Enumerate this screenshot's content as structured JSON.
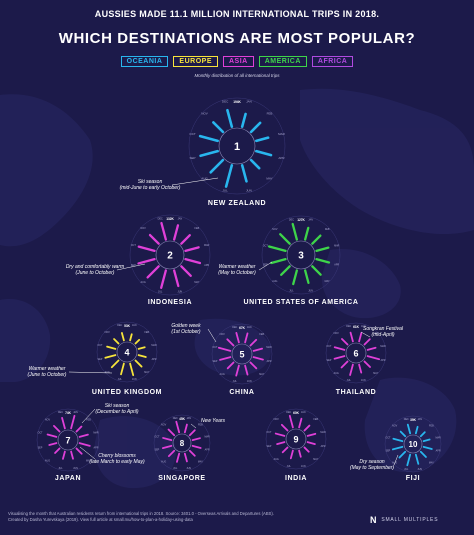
{
  "header": {
    "title_line1": "AUSSIES MADE 11.1 MILLION INTERNATIONAL TRIPS IN 2018.",
    "title_line2": "WHICH DESTINATIONS ARE MOST POPULAR?",
    "subtitle": "Monthly distribution of all international trips"
  },
  "legend": [
    {
      "label": "OCEANIA",
      "color": "#29b6ee"
    },
    {
      "label": "EUROPE",
      "color": "#f7e43b"
    },
    {
      "label": "ASIA",
      "color": "#e040d8"
    },
    {
      "label": "AMERICA",
      "color": "#3ed44a"
    },
    {
      "label": "AFRICA",
      "color": "#b04ae0"
    }
  ],
  "chart_data": {
    "type": "radial-bar",
    "months": [
      "JAN",
      "FEB",
      "MAR",
      "APR",
      "MAY",
      "JUN",
      "JUL",
      "AUG",
      "SEP",
      "OCT",
      "NOV",
      "DEC"
    ],
    "destinations": [
      {
        "rank": "1",
        "name": "NEW ZEALAND",
        "region": "Oceania",
        "color": "#29b6ee",
        "max_label": "194K",
        "values": [
          116,
          112,
          108,
          134,
          100,
          146,
          194,
          152,
          156,
          160,
          118,
          150
        ]
      },
      {
        "rank": "2",
        "name": "INDONESIA",
        "region": "Asia",
        "color": "#e040d8",
        "max_label": "132K",
        "values": [
          108,
          88,
          100,
          110,
          98,
          118,
          132,
          115,
          122,
          120,
          90,
          125
        ]
      },
      {
        "rank": "3",
        "name": "UNITED STATES OF AMERICA",
        "region": "America",
        "color": "#3ed44a",
        "max_label": "127K",
        "values": [
          90,
          85,
          92,
          97,
          88,
          96,
          105,
          90,
          110,
          127,
          100,
          120
        ]
      },
      {
        "rank": "4",
        "name": "UNITED KINGDOM",
        "region": "Europe",
        "color": "#f7e43b",
        "max_label": "53K",
        "values": [
          28,
          23,
          28,
          33,
          38,
          53,
          49,
          42,
          46,
          38,
          28,
          34
        ]
      },
      {
        "rank": "5",
        "name": "CHINA",
        "region": "Asia",
        "color": "#e040d8",
        "max_label": "67K",
        "values": [
          52,
          45,
          49,
          54,
          46,
          52,
          58,
          46,
          60,
          67,
          49,
          55
        ]
      },
      {
        "rank": "6",
        "name": "THAILAND",
        "region": "Asia",
        "color": "#e040d8",
        "max_label": "61K",
        "values": [
          44,
          38,
          42,
          61,
          40,
          42,
          55,
          43,
          52,
          51,
          40,
          46
        ]
      },
      {
        "rank": "7",
        "name": "JAPAN",
        "region": "Asia",
        "color": "#e040d8",
        "max_label": "74K",
        "values": [
          74,
          40,
          49,
          60,
          42,
          42,
          43,
          36,
          42,
          52,
          45,
          62
        ]
      },
      {
        "rank": "8",
        "name": "SINGAPORE",
        "region": "Asia",
        "color": "#e040d8",
        "max_label": "45K",
        "values": [
          33,
          29,
          31,
          34,
          29,
          33,
          35,
          31,
          36,
          35,
          33,
          45
        ]
      },
      {
        "rank": "9",
        "name": "INDIA",
        "region": "Asia",
        "color": "#e040d8",
        "max_label": "60K",
        "values": [
          45,
          35,
          40,
          38,
          30,
          32,
          40,
          34,
          38,
          45,
          40,
          60
        ]
      },
      {
        "rank": "10",
        "name": "FIJI",
        "region": "Oceania",
        "color": "#29b6ee",
        "max_label": "39K",
        "values": [
          24,
          20,
          22,
          30,
          26,
          34,
          39,
          29,
          35,
          33,
          23,
          32
        ]
      }
    ],
    "annotations": [
      {
        "text": "Ski season (mid-June to early October)",
        "lines": [
          "Ski season",
          "(mid-June to early October)"
        ]
      },
      {
        "text": "Dry and comfortably warm (June to October)",
        "lines": [
          "Dry and comfortably warm",
          "(June to October)"
        ]
      },
      {
        "text": "Warmer weather (May to October)",
        "lines": [
          "Warmer weather",
          "(May to October)"
        ]
      },
      {
        "text": "Golden week (1st October)",
        "lines": [
          "Golden week",
          "(1st October)"
        ]
      },
      {
        "text": "Songkran Festival (mid-April)",
        "lines": [
          "Songkran Festival",
          "(mid-April)"
        ]
      },
      {
        "text": "Warmer weather (June to October)",
        "lines": [
          "Warmer weather",
          "(June to October)"
        ]
      },
      {
        "text": "Ski season (December to April)",
        "lines": [
          "Ski season",
          "(December to April)"
        ]
      },
      {
        "text": "Cherry blossoms (late March to early May)",
        "lines": [
          "Cherry blossoms",
          "(late March to early May)"
        ]
      },
      {
        "text": "New Years",
        "lines": [
          "New Years"
        ]
      },
      {
        "text": "Dry season (May to September)",
        "lines": [
          "Dry season",
          "(May to September)"
        ]
      }
    ]
  },
  "footer": {
    "line1": "Visualising the month that Australian residents return from international trips in 2018. Source: 3401.0 - Overseas Arrivals and Departures (ABS).",
    "line2": "Created by Dasha Yurevskaya (2019). View full article at small.mu/how-to-plan-a-holiday-using-data",
    "brand": "SMALL MULTIPLES",
    "brand_mark": "N"
  }
}
